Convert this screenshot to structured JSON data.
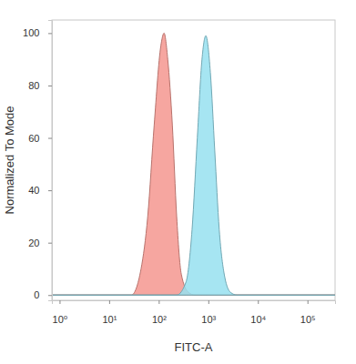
{
  "chart_data": {
    "type": "area",
    "x_label": "FITC-A",
    "y_label": "Normalized To Mode",
    "log": "x",
    "xlim": [
      0.7,
      360000
    ],
    "xticks": [
      {
        "value": 1,
        "label": "10⁰"
      },
      {
        "value": 10,
        "label": "10¹"
      },
      {
        "value": 100,
        "label": "10²"
      },
      {
        "value": 1000,
        "label": "10³"
      },
      {
        "value": 10000,
        "label": "10⁴"
      },
      {
        "value": 100000,
        "label": "10⁵"
      }
    ],
    "ylim": [
      -2,
      105
    ],
    "yticks": [
      0,
      20,
      40,
      60,
      80,
      100
    ],
    "grid": false,
    "series": [
      {
        "color": "#f5978f",
        "x": [
          0.7,
          28,
          44,
          60,
          81,
          110,
          128,
          152,
          188,
          230,
          285,
          400,
          535,
          360000
        ],
        "values": [
          0,
          0,
          10,
          30,
          65,
          95,
          100,
          90,
          65,
          30,
          8,
          1,
          0,
          0
        ]
      },
      {
        "color": "#96e0f0",
        "x": [
          0.7,
          230,
          355,
          470,
          600,
          745,
          890,
          1100,
          1350,
          1660,
          2140,
          2820,
          3800,
          360000
        ],
        "values": [
          0,
          0,
          5,
          25,
          60,
          90,
          99,
          85,
          55,
          25,
          7,
          1,
          0,
          0
        ]
      }
    ]
  }
}
